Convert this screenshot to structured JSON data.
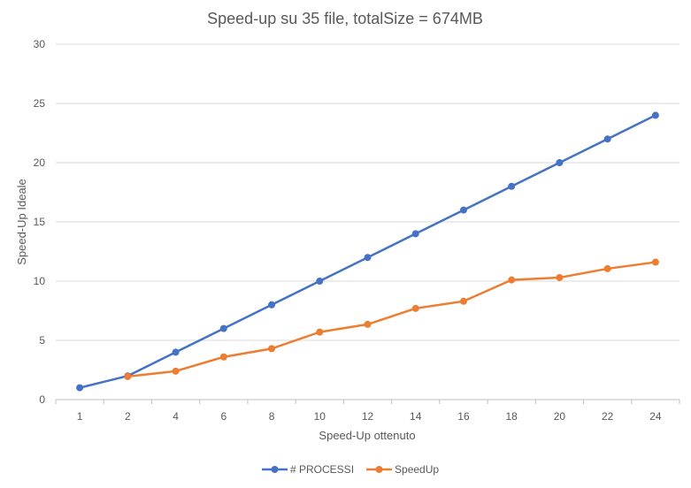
{
  "chart_data": {
    "type": "line",
    "title": "Speed-up su 35 file, totalSize = 674MB",
    "xlabel": "Speed-Up ottenuto",
    "ylabel": "Speed-Up Ideale",
    "categories": [
      "1",
      "2",
      "4",
      "6",
      "8",
      "10",
      "12",
      "14",
      "16",
      "18",
      "20",
      "22",
      "24"
    ],
    "ylim": [
      0,
      30
    ],
    "yticks": [
      0,
      5,
      10,
      15,
      20,
      25,
      30
    ],
    "grid": true,
    "legend_position": "bottom",
    "series": [
      {
        "name": "# PROCESSI",
        "color": "#4472c4",
        "values": [
          1,
          2,
          4,
          6,
          8,
          10,
          12,
          14,
          16,
          18,
          20,
          22,
          24
        ]
      },
      {
        "name": "SpeedUp",
        "color": "#ed7d31",
        "values": [
          null,
          1.95,
          2.4,
          3.6,
          4.3,
          5.7,
          6.35,
          7.7,
          8.3,
          10.1,
          10.3,
          11.05,
          11.6
        ]
      }
    ]
  }
}
